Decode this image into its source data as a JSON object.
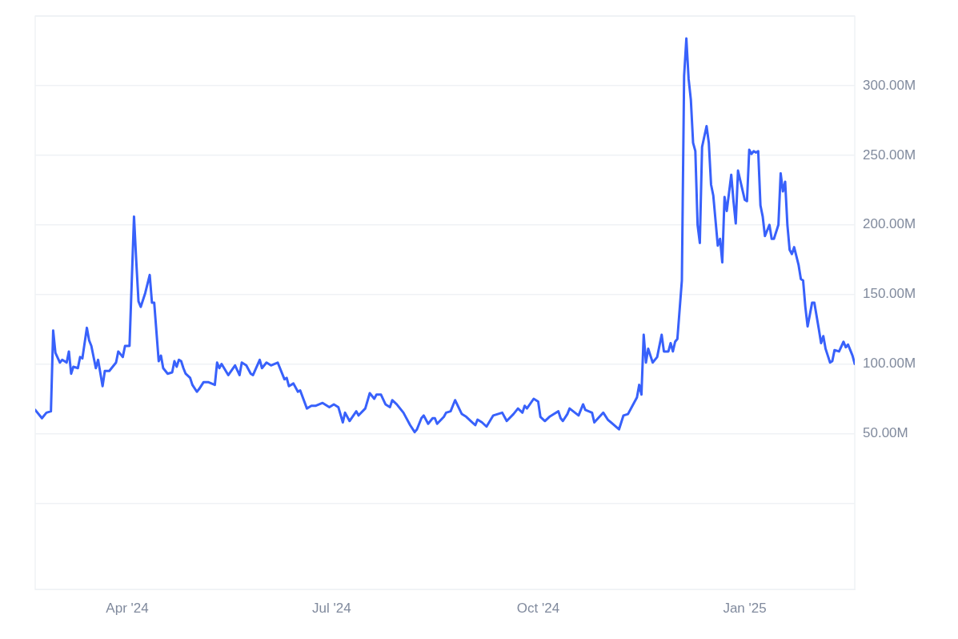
{
  "chart_data": {
    "type": "line",
    "x": [
      "2024-02-20",
      "2024-02-23",
      "2024-02-25",
      "2024-02-27",
      "2024-02-28",
      "2024-02-29",
      "2024-03-02",
      "2024-03-03",
      "2024-03-05",
      "2024-03-06",
      "2024-03-07",
      "2024-03-08",
      "2024-03-10",
      "2024-03-11",
      "2024-03-12",
      "2024-03-14",
      "2024-03-15",
      "2024-03-16",
      "2024-03-18",
      "2024-03-19",
      "2024-03-21",
      "2024-03-22",
      "2024-03-24",
      "2024-03-27",
      "2024-03-28",
      "2024-03-30",
      "2024-03-31",
      "2024-04-02",
      "2024-04-04",
      "2024-04-05",
      "2024-04-06",
      "2024-04-07",
      "2024-04-09",
      "2024-04-11",
      "2024-04-12",
      "2024-04-13",
      "2024-04-15",
      "2024-04-16",
      "2024-04-17",
      "2024-04-19",
      "2024-04-21",
      "2024-04-22",
      "2024-04-23",
      "2024-04-24",
      "2024-04-25",
      "2024-04-26",
      "2024-04-27",
      "2024-04-29",
      "2024-04-30",
      "2024-05-02",
      "2024-05-03",
      "2024-05-05",
      "2024-05-07",
      "2024-05-10",
      "2024-05-11",
      "2024-05-12",
      "2024-05-13",
      "2024-05-16",
      "2024-05-19",
      "2024-05-21",
      "2024-05-22",
      "2024-05-24",
      "2024-05-26",
      "2024-05-27",
      "2024-05-30",
      "2024-05-31",
      "2024-06-02",
      "2024-06-04",
      "2024-06-07",
      "2024-06-10",
      "2024-06-11",
      "2024-06-12",
      "2024-06-14",
      "2024-06-16",
      "2024-06-17",
      "2024-06-20",
      "2024-06-22",
      "2024-06-24",
      "2024-06-27",
      "2024-06-30",
      "2024-07-02",
      "2024-07-04",
      "2024-07-06",
      "2024-07-07",
      "2024-07-09",
      "2024-07-12",
      "2024-07-13",
      "2024-07-16",
      "2024-07-18",
      "2024-07-20",
      "2024-07-21",
      "2024-07-23",
      "2024-07-25",
      "2024-07-27",
      "2024-07-28",
      "2024-07-30",
      "2024-08-02",
      "2024-08-05",
      "2024-08-07",
      "2024-08-08",
      "2024-08-10",
      "2024-08-11",
      "2024-08-13",
      "2024-08-15",
      "2024-08-16",
      "2024-08-17",
      "2024-08-20",
      "2024-08-21",
      "2024-08-23",
      "2024-08-25",
      "2024-08-28",
      "2024-08-30",
      "2024-09-01",
      "2024-09-03",
      "2024-09-04",
      "2024-09-06",
      "2024-09-08",
      "2024-09-11",
      "2024-09-15",
      "2024-09-17",
      "2024-09-20",
      "2024-09-22",
      "2024-09-24",
      "2024-09-25",
      "2024-09-26",
      "2024-09-29",
      "2024-10-01",
      "2024-10-02",
      "2024-10-04",
      "2024-10-06",
      "2024-10-08",
      "2024-10-10",
      "2024-10-11",
      "2024-10-12",
      "2024-10-14",
      "2024-10-15",
      "2024-10-19",
      "2024-10-21",
      "2024-10-22",
      "2024-10-25",
      "2024-10-26",
      "2024-10-30",
      "2024-11-01",
      "2024-11-06",
      "2024-11-08",
      "2024-11-10",
      "2024-11-14",
      "2024-11-15",
      "2024-11-16",
      "2024-11-17",
      "2024-11-18",
      "2024-11-19",
      "2024-11-21",
      "2024-11-23",
      "2024-11-25",
      "2024-11-26",
      "2024-11-28",
      "2024-11-29",
      "2024-11-30",
      "2024-12-01",
      "2024-12-02",
      "2024-12-04",
      "2024-12-05",
      "2024-12-06",
      "2024-12-07",
      "2024-12-08",
      "2024-12-09",
      "2024-12-10",
      "2024-12-11",
      "2024-12-12",
      "2024-12-13",
      "2024-12-15",
      "2024-12-16",
      "2024-12-17",
      "2024-12-18",
      "2024-12-20",
      "2024-12-21",
      "2024-12-22",
      "2024-12-23",
      "2024-12-24",
      "2024-12-26",
      "2024-12-27",
      "2024-12-28",
      "2024-12-29",
      "2024-12-31",
      "2025-01-01",
      "2025-01-02",
      "2025-01-03",
      "2025-01-04",
      "2025-01-05",
      "2025-01-06",
      "2025-01-07",
      "2025-01-08",
      "2025-01-09",
      "2025-01-10",
      "2025-01-12",
      "2025-01-13",
      "2025-01-14",
      "2025-01-16",
      "2025-01-17",
      "2025-01-18",
      "2025-01-19",
      "2025-01-20",
      "2025-01-21",
      "2025-01-22",
      "2025-01-23",
      "2025-01-25",
      "2025-01-26",
      "2025-01-27",
      "2025-01-28",
      "2025-01-29",
      "2025-01-31",
      "2025-02-01",
      "2025-02-03",
      "2025-02-04",
      "2025-02-05",
      "2025-02-06",
      "2025-02-07",
      "2025-02-08",
      "2025-02-09",
      "2025-02-10",
      "2025-02-12",
      "2025-02-14",
      "2025-02-15",
      "2025-02-16",
      "2025-02-17",
      "2025-02-18",
      "2025-02-19"
    ],
    "series": [
      {
        "color": "#3861fb",
        "values": [
          67,
          61,
          65,
          66,
          124,
          108,
          101,
          103,
          101,
          109,
          93,
          98,
          97,
          105,
          104,
          126,
          117,
          113,
          97,
          103,
          84,
          95,
          95,
          101,
          109,
          105,
          113,
          113,
          206,
          174,
          145,
          141,
          151,
          164,
          144,
          144,
          102,
          106,
          97,
          93,
          94,
          102,
          98,
          103,
          102,
          97,
          93,
          90,
          85,
          80,
          82,
          87,
          87,
          85,
          101,
          97,
          100,
          92,
          99,
          92,
          101,
          99,
          93,
          92,
          103,
          97,
          101,
          99,
          101,
          89,
          90,
          84,
          86,
          80,
          81,
          68,
          70,
          70,
          72,
          69,
          71,
          69,
          58,
          65,
          59,
          66,
          63,
          68,
          79,
          75,
          78,
          78,
          71,
          69,
          74,
          71,
          65,
          56,
          51,
          53,
          61,
          63,
          57,
          61,
          61,
          57,
          62,
          65,
          66,
          74,
          64,
          62,
          59,
          56,
          60,
          58,
          55,
          63,
          65,
          59,
          64,
          68,
          65,
          70,
          68,
          75,
          73,
          62,
          59,
          62,
          64,
          66,
          61,
          59,
          64,
          68,
          63,
          71,
          67,
          65,
          58,
          65,
          60,
          53,
          63,
          64,
          76,
          85,
          78,
          121,
          101,
          111,
          101,
          105,
          121,
          109,
          109,
          115,
          109,
          116,
          118,
          160,
          307,
          334,
          305,
          290,
          259,
          253,
          200,
          187,
          256,
          271,
          259,
          229,
          221,
          185,
          190,
          173,
          220,
          210,
          236,
          217,
          201,
          239,
          225,
          218,
          217,
          254,
          251,
          253,
          252,
          253,
          214,
          206,
          192,
          200,
          190,
          190,
          200,
          237,
          224,
          231,
          200,
          182,
          179,
          184,
          171,
          161,
          160,
          141,
          127,
          144,
          144,
          125,
          115,
          120,
          111,
          106,
          101,
          102,
          110,
          109,
          116,
          112,
          114,
          110,
          106,
          100
        ]
      }
    ],
    "xlim": [
      "2024-02-20",
      "2025-02-19"
    ],
    "xticks": [
      {
        "value": "2024-04-01",
        "label": "Apr '24"
      },
      {
        "value": "2024-07-01",
        "label": "Jul '24"
      },
      {
        "value": "2024-10-01",
        "label": "Oct '24"
      },
      {
        "value": "2025-01-01",
        "label": "Jan '25"
      }
    ],
    "ylim": [
      -62,
      350
    ],
    "yticks": [
      {
        "value": 0,
        "label": null
      },
      {
        "value": 50,
        "label": "50.00M"
      },
      {
        "value": 100,
        "label": "100.00M"
      },
      {
        "value": 150,
        "label": "150.00M"
      },
      {
        "value": 200,
        "label": "200.00M"
      },
      {
        "value": 250,
        "label": "250.00M"
      },
      {
        "value": 300,
        "label": "300.00M"
      },
      {
        "value": 350,
        "label": null
      }
    ],
    "grid": "y",
    "legend": false,
    "marker": "none"
  }
}
